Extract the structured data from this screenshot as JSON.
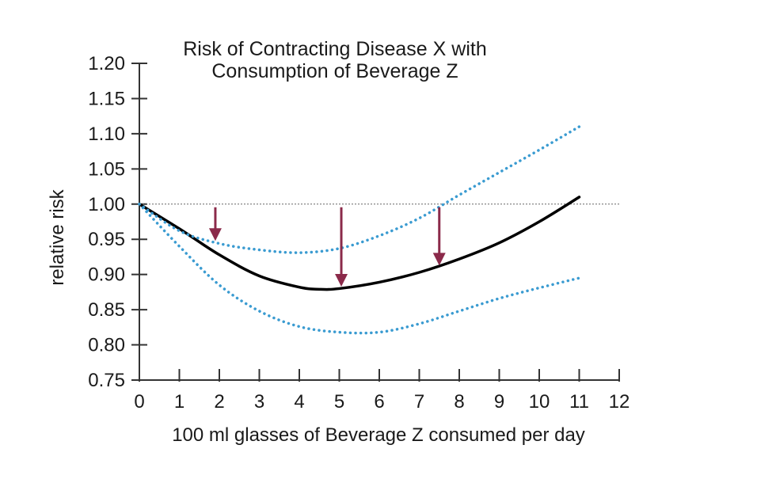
{
  "chart_data": {
    "type": "line",
    "title_line1": "Risk of Contracting Disease X with",
    "title_line2": "Consumption of Beverage Z",
    "xlabel": "100 ml glasses of Beverage Z consumed per day",
    "ylabel": "relative risk",
    "xlim": [
      0,
      12
    ],
    "ylim": [
      0.75,
      1.2
    ],
    "x_ticks": [
      0,
      1,
      2,
      3,
      4,
      5,
      6,
      7,
      8,
      9,
      10,
      11,
      12
    ],
    "y_ticks": [
      0.75,
      0.8,
      0.85,
      0.9,
      0.95,
      1.0,
      1.05,
      1.1,
      1.15,
      1.2
    ],
    "y_tick_labels": [
      "0.75",
      "0.80",
      "0.85",
      "0.90",
      "0.95",
      "1.00",
      "1.05",
      "1.10",
      "1.15",
      "1.20"
    ],
    "reference_line": 1.0,
    "series": [
      {
        "role": "estimate",
        "style": "solid",
        "color": "#000000",
        "x": [
          0,
          1,
          2,
          3,
          4,
          4.5,
          5,
          6,
          7,
          8,
          9,
          10,
          11
        ],
        "y": [
          1.0,
          0.965,
          0.928,
          0.898,
          0.882,
          0.879,
          0.88,
          0.889,
          0.903,
          0.922,
          0.945,
          0.975,
          1.01
        ]
      },
      {
        "role": "upper-bound",
        "style": "dotted",
        "color": "#3a9bd1",
        "x": [
          0,
          1,
          2,
          3,
          4,
          5,
          6,
          7,
          8,
          9,
          10,
          11
        ],
        "y": [
          1.0,
          0.962,
          0.944,
          0.935,
          0.931,
          0.937,
          0.955,
          0.98,
          1.013,
          1.045,
          1.077,
          1.11
        ]
      },
      {
        "role": "lower-bound",
        "style": "dotted",
        "color": "#3a9bd1",
        "x": [
          0,
          1,
          2,
          3,
          4,
          5,
          6,
          7,
          8,
          9,
          10,
          11
        ],
        "y": [
          1.0,
          0.94,
          0.885,
          0.848,
          0.826,
          0.818,
          0.818,
          0.83,
          0.848,
          0.866,
          0.881,
          0.895
        ]
      }
    ],
    "annotations": [
      {
        "type": "arrow",
        "x": 1.9,
        "y_from": 1.0,
        "y_to": 0.95,
        "color": "#8b2a4a"
      },
      {
        "type": "arrow",
        "x": 5.05,
        "y_from": 1.0,
        "y_to": 0.885,
        "color": "#8b2a4a"
      },
      {
        "type": "arrow",
        "x": 7.5,
        "y_from": 1.0,
        "y_to": 0.915,
        "color": "#8b2a4a"
      }
    ],
    "grid": false,
    "legend": "none"
  }
}
